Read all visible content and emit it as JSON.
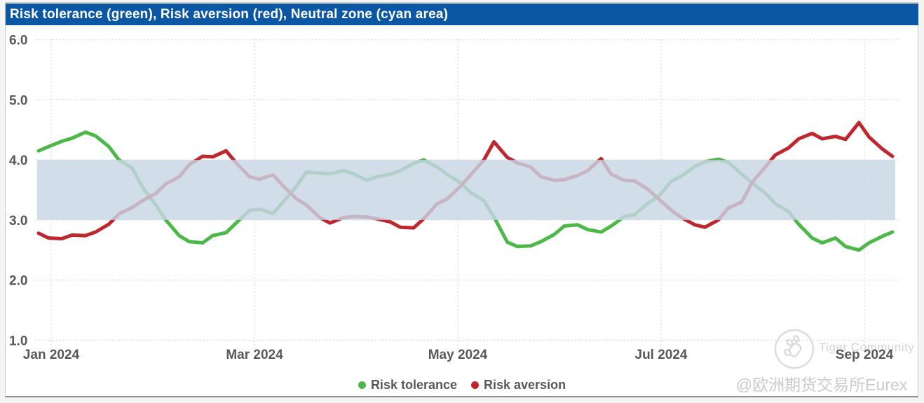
{
  "header": {
    "title": "Risk tolerance (green), Risk aversion (red), Neutral zone (cyan area)",
    "bg_color": "#0b57a4",
    "text_color": "#ffffff"
  },
  "chart_data": {
    "type": "line",
    "title": "Risk tolerance (green), Risk aversion (red), Neutral zone (cyan area)",
    "xlabel": "",
    "ylabel": "",
    "ylim": [
      1.0,
      6.0
    ],
    "grid": "dotted",
    "legend_position": "bottom-center",
    "y_tick_labels": [
      "6.0",
      "5.0",
      "4.0",
      "3.0",
      "2.0",
      "1.0"
    ],
    "y_ticks": [
      6,
      5,
      4,
      3,
      2,
      1
    ],
    "x_tick_labels": [
      "Jan 2024",
      "Mar 2024",
      "May 2024",
      "Jul 2024",
      "Sep 2024"
    ],
    "neutral_zone": {
      "label": "Neutral zone (cyan area)",
      "from": 3.0,
      "to": 4.0,
      "color": "#c8d6e5"
    },
    "x": [
      "2024-01-01",
      "2024-01-04",
      "2024-01-08",
      "2024-01-11",
      "2024-01-15",
      "2024-01-18",
      "2024-01-22",
      "2024-01-25",
      "2024-01-29",
      "2024-02-01",
      "2024-02-05",
      "2024-02-08",
      "2024-02-12",
      "2024-02-15",
      "2024-02-19",
      "2024-02-22",
      "2024-02-26",
      "2024-02-29",
      "2024-03-04",
      "2024-03-07",
      "2024-03-11",
      "2024-03-14",
      "2024-03-18",
      "2024-03-21",
      "2024-03-25",
      "2024-03-28",
      "2024-04-01",
      "2024-04-04",
      "2024-04-08",
      "2024-04-11",
      "2024-04-15",
      "2024-04-18",
      "2024-04-22",
      "2024-04-25",
      "2024-04-29",
      "2024-05-02",
      "2024-05-06",
      "2024-05-09",
      "2024-05-13",
      "2024-05-16",
      "2024-05-20",
      "2024-05-23",
      "2024-05-27",
      "2024-05-30",
      "2024-06-03",
      "2024-06-06",
      "2024-06-10",
      "2024-06-13",
      "2024-06-17",
      "2024-06-20",
      "2024-06-24",
      "2024-06-27",
      "2024-07-01",
      "2024-07-04",
      "2024-07-08",
      "2024-07-11",
      "2024-07-15",
      "2024-07-18",
      "2024-07-22",
      "2024-07-25",
      "2024-07-29",
      "2024-08-01",
      "2024-08-05",
      "2024-08-08",
      "2024-08-12",
      "2024-08-15",
      "2024-08-19",
      "2024-08-22",
      "2024-08-26",
      "2024-08-29",
      "2024-09-02",
      "2024-09-05",
      "2024-09-09",
      "2024-09-12"
    ],
    "series": [
      {
        "name": "Risk tolerance",
        "color": "#4cb848",
        "values": [
          4.15,
          4.22,
          4.31,
          4.36,
          4.46,
          4.4,
          4.22,
          4.0,
          3.86,
          3.55,
          3.25,
          3.0,
          2.74,
          2.64,
          2.62,
          2.74,
          2.79,
          2.95,
          3.16,
          3.18,
          3.11,
          3.3,
          3.56,
          3.8,
          3.78,
          3.77,
          3.82,
          3.77,
          3.66,
          3.72,
          3.76,
          3.82,
          3.94,
          4.0,
          3.88,
          3.76,
          3.62,
          3.46,
          3.32,
          3.05,
          2.63,
          2.56,
          2.57,
          2.64,
          2.76,
          2.9,
          2.92,
          2.84,
          2.8,
          2.9,
          3.06,
          3.09,
          3.28,
          3.38,
          3.65,
          3.73,
          3.89,
          3.97,
          4.01,
          3.96,
          3.76,
          3.62,
          3.45,
          3.27,
          3.14,
          2.93,
          2.7,
          2.62,
          2.7,
          2.56,
          2.5,
          2.62,
          2.73,
          2.8
        ]
      },
      {
        "name": "Risk aversion",
        "color": "#c0262e",
        "values": [
          2.78,
          2.7,
          2.69,
          2.75,
          2.74,
          2.8,
          2.93,
          3.1,
          3.21,
          3.32,
          3.44,
          3.6,
          3.72,
          3.92,
          4.06,
          4.05,
          4.15,
          3.95,
          3.72,
          3.68,
          3.75,
          3.57,
          3.35,
          3.25,
          3.04,
          2.95,
          3.04,
          3.06,
          3.05,
          3.02,
          2.97,
          2.88,
          2.87,
          3.02,
          3.27,
          3.35,
          3.56,
          3.75,
          4.0,
          4.3,
          4.04,
          3.95,
          3.88,
          3.72,
          3.66,
          3.67,
          3.74,
          3.82,
          4.02,
          3.76,
          3.66,
          3.65,
          3.51,
          3.36,
          3.16,
          3.04,
          2.92,
          2.88,
          3.0,
          3.2,
          3.3,
          3.62,
          3.88,
          4.08,
          4.2,
          4.35,
          4.44,
          4.35,
          4.39,
          4.34,
          4.62,
          4.38,
          4.18,
          4.06
        ]
      }
    ],
    "styles": {
      "grid_color": "#d8d8d8",
      "axis_text_color": "#595959",
      "line_width": 5
    }
  },
  "legend": {
    "items": [
      {
        "label": "Risk tolerance",
        "color": "#4cb848"
      },
      {
        "label": "Risk aversion",
        "color": "#c0262e"
      }
    ]
  },
  "watermark": {
    "logo": "tiger-paw-in-circle",
    "name": "Tiger Community",
    "handle": "@欧洲期货交易所Eurex"
  }
}
